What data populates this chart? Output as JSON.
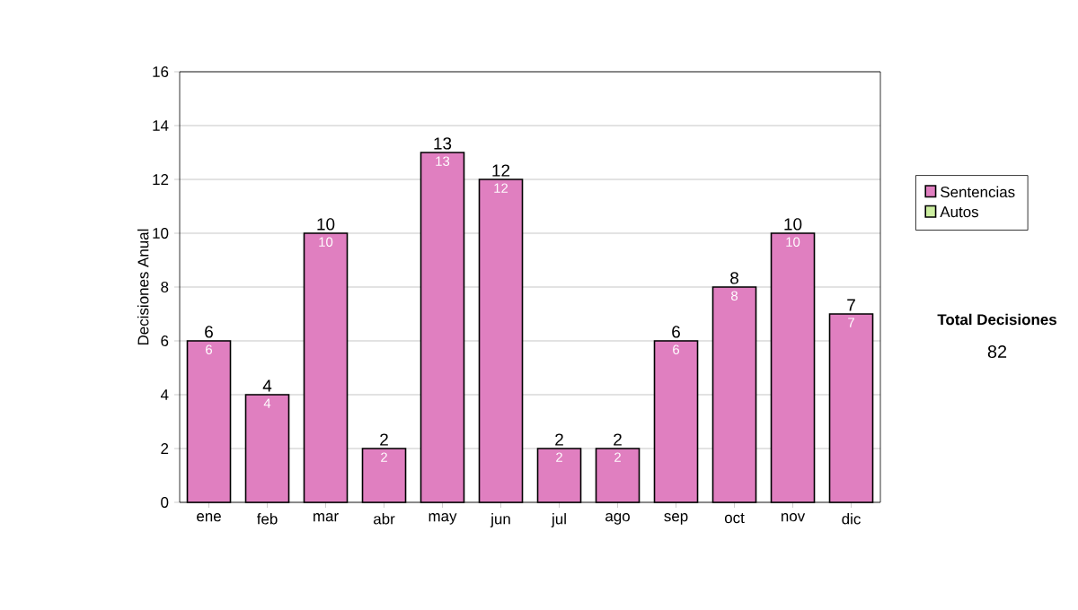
{
  "chart_data": {
    "type": "bar",
    "stacked": true,
    "ylabel": "Decisiones Anual",
    "categories": [
      "ene",
      "feb",
      "mar",
      "abr",
      "may",
      "jun",
      "jul",
      "ago",
      "sep",
      "oct",
      "nov",
      "dic"
    ],
    "series": [
      {
        "name": "Sentencias",
        "color": "#e07fc0",
        "values": [
          6,
          4,
          10,
          2,
          13,
          12,
          2,
          2,
          6,
          8,
          10,
          7
        ],
        "value_labels": [
          "6",
          "4",
          "10",
          "2",
          "13",
          "12",
          "2",
          "2",
          "6",
          "8",
          "10",
          "7"
        ]
      },
      {
        "name": "Autos",
        "color": "#cceea0",
        "values": [
          0,
          0,
          0,
          0,
          0,
          0,
          0,
          0,
          0,
          0,
          0,
          0
        ]
      }
    ],
    "totals": [
      "6",
      "4",
      "10",
      "2",
      "13",
      "12",
      "2",
      "2",
      "6",
      "8",
      "10",
      "7"
    ],
    "ylim": [
      0,
      16
    ],
    "yticks": [
      0,
      2,
      4,
      6,
      8,
      10,
      12,
      14,
      16
    ],
    "grid": "y",
    "legend": "right",
    "annotations": [
      "Total Decisiones",
      "82"
    ]
  }
}
